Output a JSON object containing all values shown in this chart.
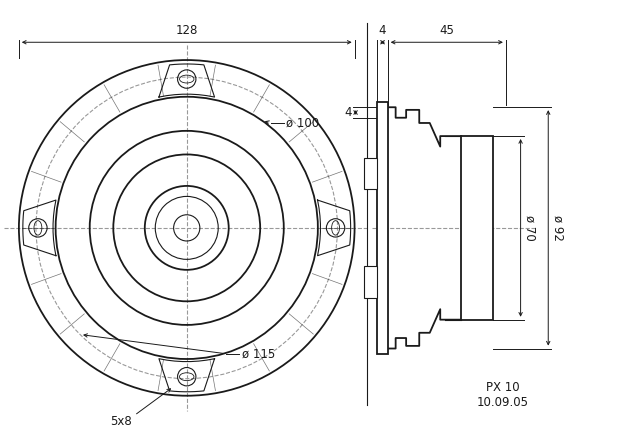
{
  "bg_color": "#ffffff",
  "lc": "#1a1a1a",
  "dc": "#1a1a1a",
  "grc": "#999999",
  "fig_width": 6.44,
  "fig_height": 4.37,
  "dpi": 100,
  "dim_128": "128",
  "dim_4a": "4",
  "dim_45": "45",
  "dim_4b": "4",
  "dim_phi100": "ø 100",
  "dim_phi115": "ø 115",
  "dim_5x8": "5x8",
  "dim_phi70": "ø 70",
  "dim_phi92": "ø 92",
  "label_px10": "PX 10",
  "label_date": "10.09.05"
}
